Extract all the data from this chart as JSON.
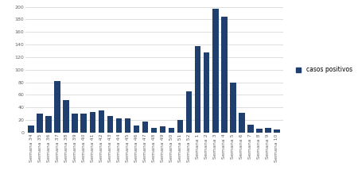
{
  "categories": [
    "Semana 34",
    "Semana 35",
    "Semana 36",
    "Semana 37",
    "Semana 38",
    "Semana 39",
    "Semana 40",
    "Semana 41",
    "Semana 42",
    "Semana 43",
    "Semana 44",
    "Semana 45",
    "Semana 46",
    "Semana 47",
    "Semana 48",
    "Semana 49",
    "Semana 50",
    "Semana 51",
    "Semana 52",
    "Semana 1",
    "Semana 2",
    "Semana 3",
    "Semana 4",
    "Semana 5",
    "Semana 6",
    "Semana 7",
    "Semana 8",
    "Semana 9",
    "Semana 10"
  ],
  "values": [
    11,
    30,
    27,
    82,
    52,
    30,
    30,
    33,
    35,
    26,
    23,
    23,
    11,
    18,
    8,
    10,
    8,
    20,
    65,
    138,
    128,
    197,
    184,
    80,
    31,
    13,
    6,
    8,
    5
  ],
  "bar_color": "#1F3F6E",
  "legend_label": "casos positivos",
  "ylim": [
    0,
    200
  ],
  "yticks": [
    0,
    20,
    40,
    60,
    80,
    100,
    120,
    140,
    160,
    180,
    200
  ],
  "background_color": "#ffffff",
  "grid_color": "#d0d0d0",
  "tick_fontsize": 4.5,
  "legend_fontsize": 5.5
}
